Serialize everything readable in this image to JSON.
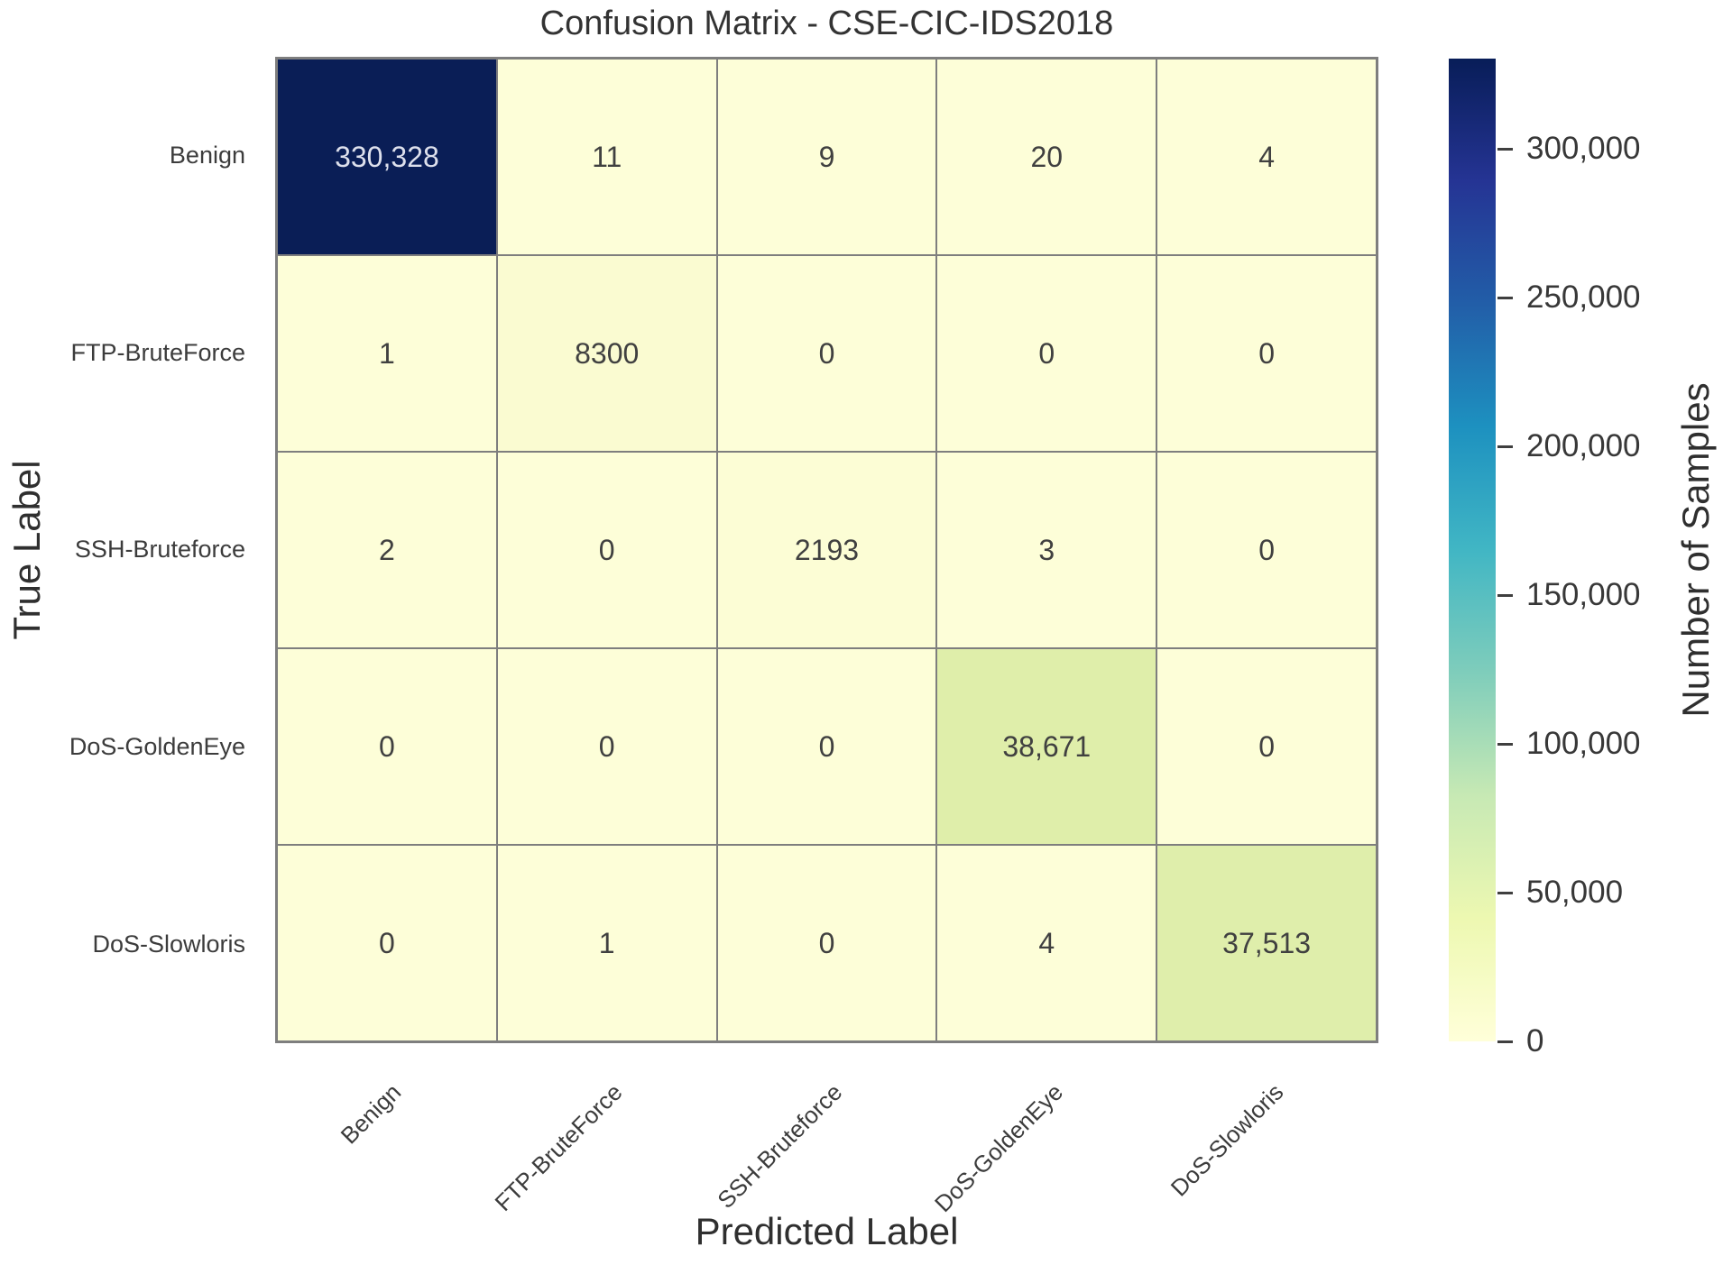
{
  "chart_data": {
    "type": "heatmap",
    "title": "Confusion Matrix - CSE-CIC-IDS2018",
    "xlabel": "Predicted Label",
    "ylabel": "True Label",
    "categories": [
      "Benign",
      "FTP-BruteForce",
      "SSH-Bruteforce",
      "DoS-GoldenEye",
      "DoS-Slowloris"
    ],
    "matrix": [
      [
        330328,
        11,
        9,
        20,
        4
      ],
      [
        1,
        8300,
        0,
        0,
        0
      ],
      [
        2,
        0,
        2193,
        3,
        0
      ],
      [
        0,
        0,
        0,
        38671,
        0
      ],
      [
        0,
        1,
        0,
        4,
        37513
      ]
    ],
    "matrix_display": [
      [
        "330,328",
        "11",
        "9",
        "20",
        "4"
      ],
      [
        "1",
        "8300",
        "0",
        "0",
        "0"
      ],
      [
        "2",
        "0",
        "2193",
        "3",
        "0"
      ],
      [
        "0",
        "0",
        "0",
        "38,671",
        "0"
      ],
      [
        "0",
        "1",
        "0",
        "4",
        "37,513"
      ]
    ],
    "cell_colors": [
      [
        "#0a1e56",
        "#fdfed8",
        "#fdfed8",
        "#fdfed8",
        "#fdfed8"
      ],
      [
        "#fdfed8",
        "#fafbd1",
        "#fdfed8",
        "#fdfed8",
        "#fdfed8"
      ],
      [
        "#fdfed8",
        "#fdfed8",
        "#fcfdd5",
        "#fdfed8",
        "#fdfed8"
      ],
      [
        "#fdfed8",
        "#fdfed8",
        "#fdfed8",
        "#dfeeaa",
        "#fdfed8"
      ],
      [
        "#fdfed8",
        "#fdfed8",
        "#fdfed8",
        "#fdfed8",
        "#dfeeab"
      ]
    ],
    "value_text_color_light_bg": "#404040",
    "value_text_color_dark_bg": "#dde0ec",
    "grid_line_color": "#7e7e7e",
    "colorbar": {
      "label": "Number of Samples",
      "vmin": 0,
      "vmax": 330328,
      "ticks": [
        {
          "label": "300,000",
          "value": 300000
        },
        {
          "label": "250,000",
          "value": 250000
        },
        {
          "label": "200,000",
          "value": 200000
        },
        {
          "label": "150,000",
          "value": 150000
        },
        {
          "label": "100,000",
          "value": 100000
        },
        {
          "label": "50,000",
          "value": 50000
        },
        {
          "label": "0",
          "value": 0
        }
      ],
      "gradient_top_to_bottom": [
        {
          "pos": 0,
          "color": "#081d58"
        },
        {
          "pos": 12.5,
          "color": "#253494"
        },
        {
          "pos": 25,
          "color": "#225ea8"
        },
        {
          "pos": 37.5,
          "color": "#1d91c0"
        },
        {
          "pos": 50,
          "color": "#41b6c4"
        },
        {
          "pos": 62.5,
          "color": "#7fcdbb"
        },
        {
          "pos": 75,
          "color": "#c7e9b4"
        },
        {
          "pos": 87.5,
          "color": "#edf8b1"
        },
        {
          "pos": 100,
          "color": "#ffffd9"
        }
      ]
    }
  }
}
